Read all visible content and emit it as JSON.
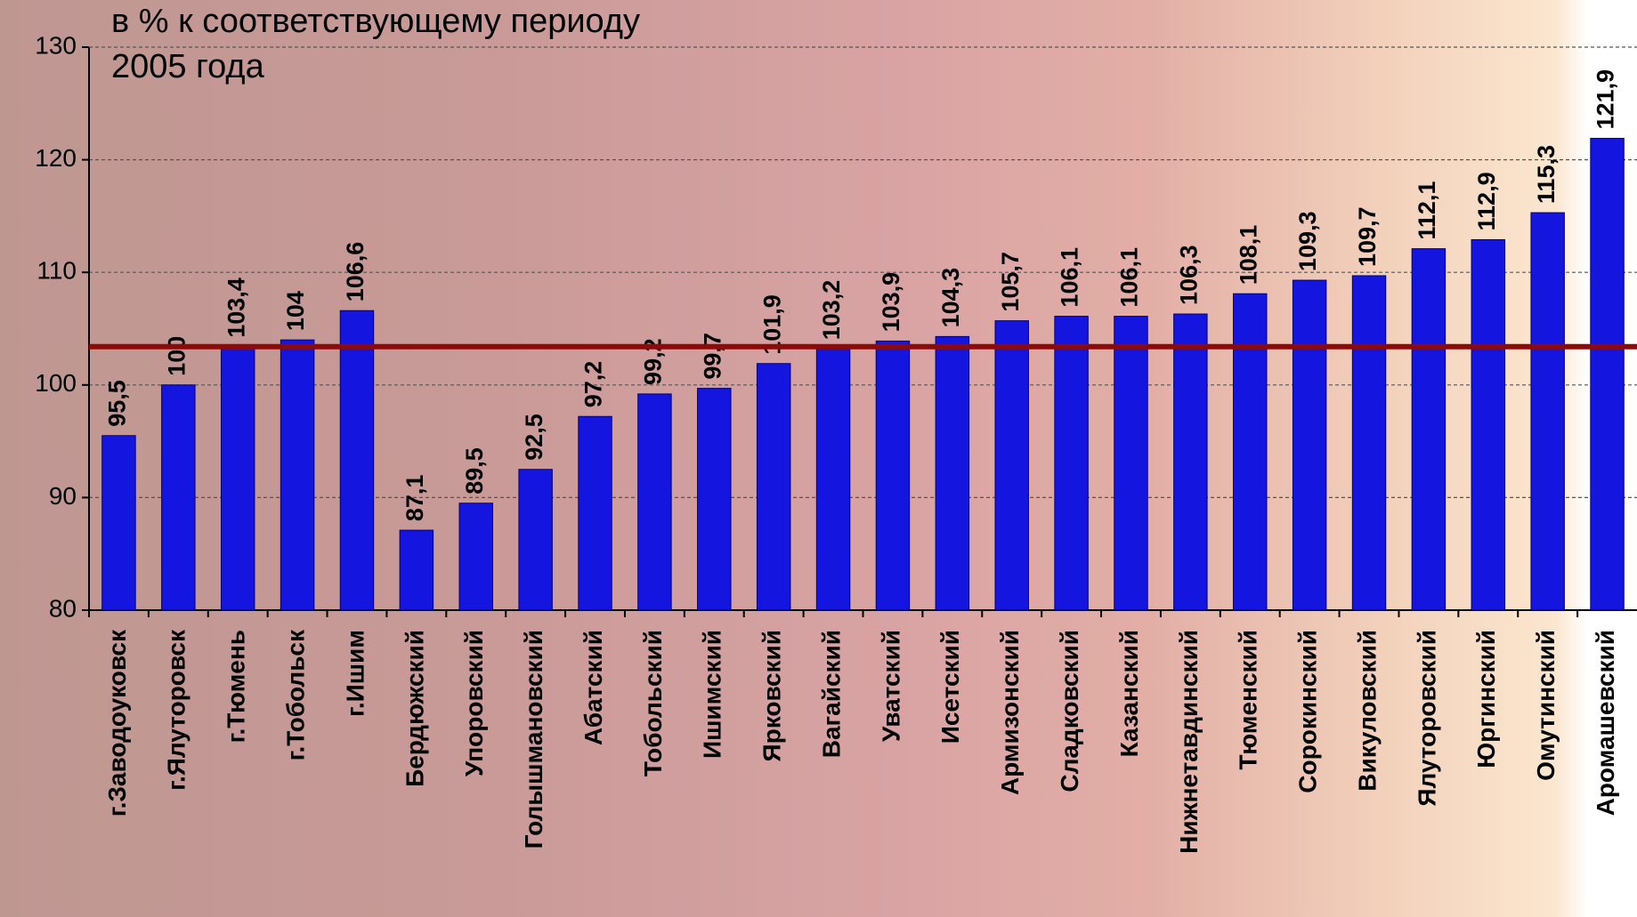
{
  "chart_data": {
    "type": "bar",
    "title_lines": [
      "в % к соответствующему периоду",
      "2005 года"
    ],
    "categories": [
      "г.Заводоуковск",
      "г.Ялуторовск",
      "г.Тюмень",
      "г.Тобольск",
      "г.Ишим",
      "Бердюжский",
      "Упоровский",
      "Голышмановский",
      "Абатский",
      "Тобольский",
      "Ишимский",
      "Ярковский",
      "Вагайский",
      "Уватский",
      "Исетский",
      "Армизонский",
      "Сладковский",
      "Казанский",
      "Нижнетавдинский",
      "Тюменский",
      "Сорокинский",
      "Викуловский",
      "Ялуторовский",
      "Юргинский",
      "Омутинский",
      "Аромашевский"
    ],
    "values": [
      95.5,
      100,
      103.4,
      104,
      106.6,
      87.1,
      89.5,
      92.5,
      97.2,
      99.2,
      99.7,
      101.9,
      103.2,
      103.9,
      104.3,
      105.7,
      106.1,
      106.1,
      106.3,
      108.1,
      109.3,
      109.7,
      112.1,
      112.9,
      115.3,
      121.9
    ],
    "value_labels": [
      "95,5",
      "100",
      "103,4",
      "104",
      "106,6",
      "87,1",
      "89,5",
      "92,5",
      "97,2",
      "99,2",
      "99,7",
      "101,9",
      "103,2",
      "103,9",
      "104,3",
      "105,7",
      "106,1",
      "106,1",
      "106,3",
      "108,1",
      "109,3",
      "109,7",
      "112,1",
      "112,9",
      "115,3",
      "121,9"
    ],
    "color": "#1515e0",
    "ylim": [
      80,
      130
    ],
    "yticks": [
      80,
      90,
      100,
      110,
      120,
      130
    ],
    "grid": true,
    "reference_line": 103.4,
    "reference_color": "#8b0a0a"
  }
}
